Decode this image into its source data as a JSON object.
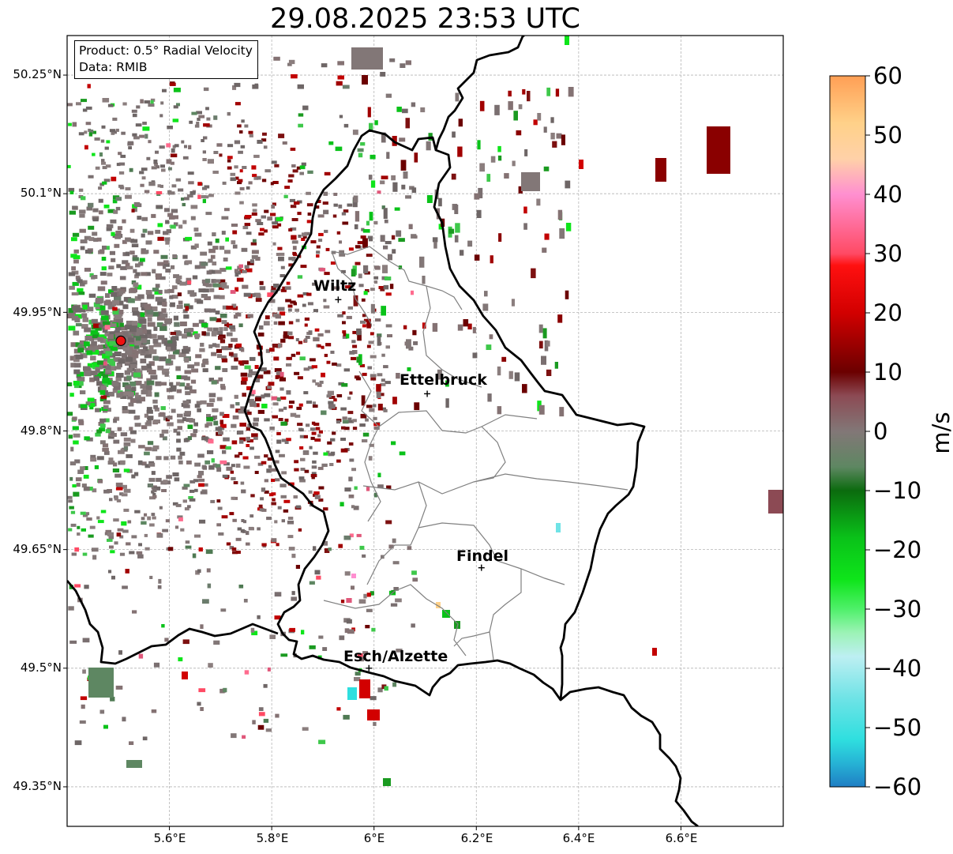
{
  "title": "29.08.2025 23:53 UTC",
  "info": {
    "product": "Product: 0.5° Radial Velocity",
    "source": "Data: RMIB"
  },
  "map": {
    "lon_range": [
      5.4,
      6.8
    ],
    "lat_range": [
      49.3,
      50.3
    ],
    "grid": true,
    "lon_ticks": [
      "5.6°E",
      "5.8°E",
      "6°E",
      "6.2°E",
      "6.4°E",
      "6.6°E"
    ],
    "lat_ticks": [
      "50.25°N",
      "50.1°N",
      "49.95°N",
      "49.8°N",
      "49.65°N",
      "49.5°N",
      "49.35°N"
    ],
    "radar_site": {
      "lon": 5.505,
      "lat": 49.914,
      "color": "#ee1111"
    },
    "cities": [
      {
        "name": "Wiltz",
        "lon": 5.93,
        "lat": 49.966
      },
      {
        "name": "Ettelbruck",
        "lon": 6.104,
        "lat": 49.847
      },
      {
        "name": "Findel",
        "lon": 6.21,
        "lat": 49.627
      },
      {
        "name": "Esch/Alzette",
        "lon": 5.99,
        "lat": 49.5
      }
    ]
  },
  "colorbar": {
    "label": "m/s",
    "min": -60,
    "max": 60,
    "ticks": [
      "60",
      "50",
      "40",
      "30",
      "20",
      "10",
      "0",
      "−10",
      "−20",
      "−30",
      "−40",
      "−50",
      "−60"
    ],
    "stops": [
      {
        "v": -60,
        "c": "#1f7ec4"
      },
      {
        "v": -56,
        "c": "#26b3d5"
      },
      {
        "v": -52,
        "c": "#2fdfdf"
      },
      {
        "v": -45,
        "c": "#6fe3e6"
      },
      {
        "v": -38,
        "c": "#bdeff2"
      },
      {
        "v": -34,
        "c": "#9cf3b6"
      },
      {
        "v": -30,
        "c": "#4ff06a"
      },
      {
        "v": -25,
        "c": "#0ee51a"
      },
      {
        "v": -18,
        "c": "#0ac219"
      },
      {
        "v": -10,
        "c": "#0b6b0e"
      },
      {
        "v": -6,
        "c": "#5e8762"
      },
      {
        "v": 0,
        "c": "#827777"
      },
      {
        "v": 6,
        "c": "#8c4a54"
      },
      {
        "v": 10,
        "c": "#6b0000"
      },
      {
        "v": 20,
        "c": "#d20000"
      },
      {
        "v": 28,
        "c": "#ff1010"
      },
      {
        "v": 30,
        "c": "#ff4a64"
      },
      {
        "v": 40,
        "c": "#ff8fd0"
      },
      {
        "v": 46,
        "c": "#ffd1a8"
      },
      {
        "v": 52,
        "c": "#ffd189"
      },
      {
        "v": 60,
        "c": "#ff9f55"
      }
    ]
  }
}
